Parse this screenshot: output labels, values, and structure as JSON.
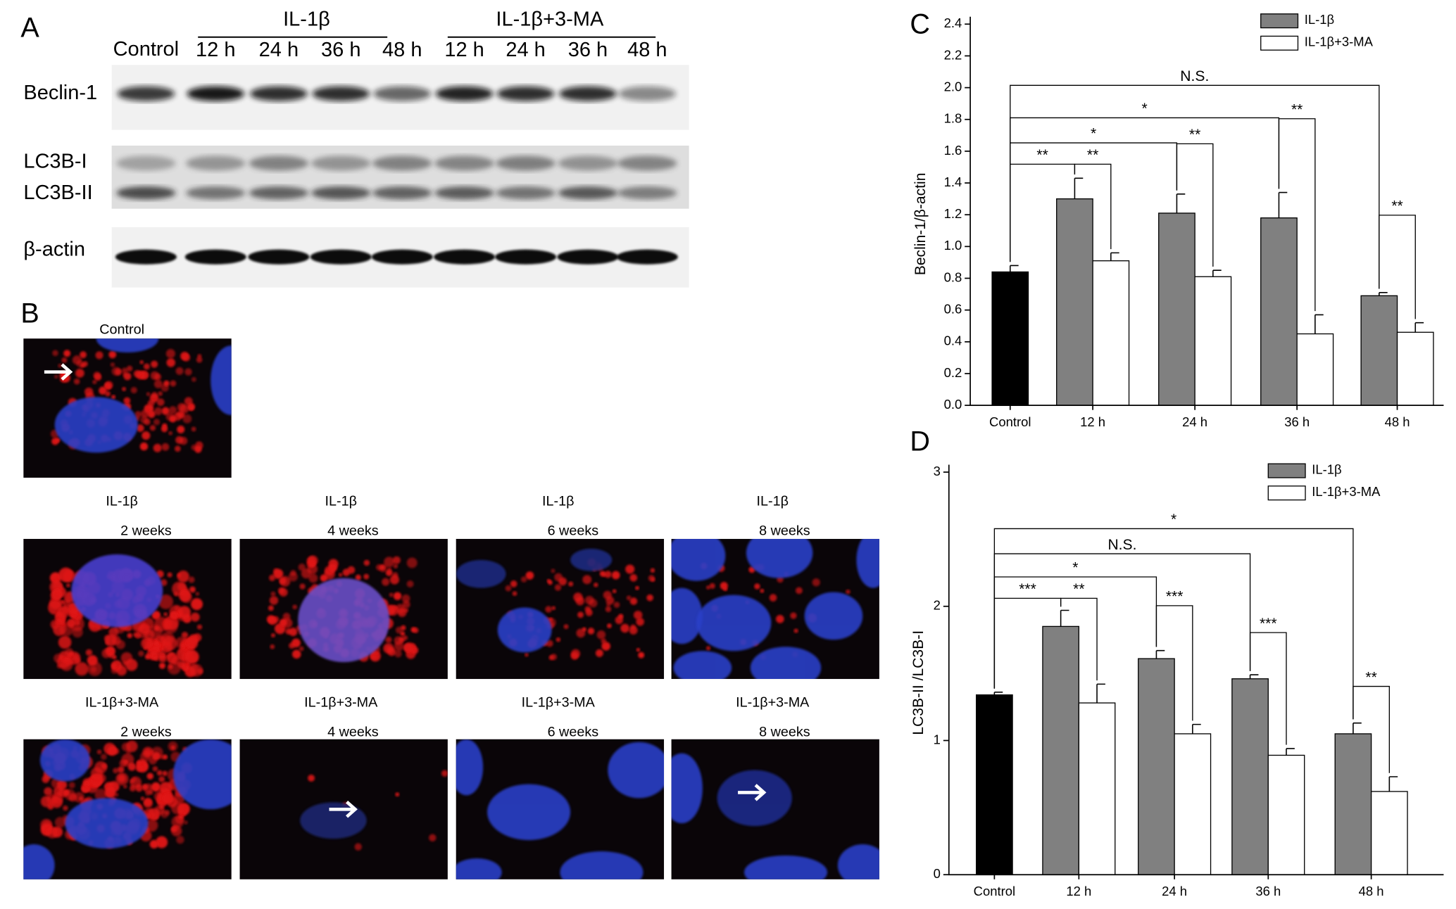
{
  "panel_a": {
    "label": "A",
    "control": "Control",
    "groups": [
      {
        "name": "IL-1β",
        "times": [
          "12 h",
          "24 h",
          "36 h",
          "48 h"
        ]
      },
      {
        "name": "IL-1β+3-MA",
        "times": [
          "12 h",
          "24 h",
          "36 h",
          "48 h"
        ]
      }
    ],
    "rows": [
      "Beclin-1",
      "LC3B-I",
      "LC3B-II",
      "β-actin"
    ]
  },
  "panel_b": {
    "label": "B",
    "control": "Control",
    "images": [
      {
        "title": "IL-1β",
        "subtitle": "2 weeks"
      },
      {
        "title": "IL-1β",
        "subtitle": "4 weeks"
      },
      {
        "title": "IL-1β",
        "subtitle": "6 weeks"
      },
      {
        "title": "IL-1β",
        "subtitle": "8 weeks"
      },
      {
        "title": "IL-1β+3-MA",
        "subtitle": "2 weeks"
      },
      {
        "title": "IL-1β+3-MA",
        "subtitle": "4 weeks"
      },
      {
        "title": "IL-1β+3-MA",
        "subtitle": "6 weeks"
      },
      {
        "title": "IL-1β+3-MA",
        "subtitle": "8 weeks"
      }
    ]
  },
  "chart_data": [
    {
      "type": "bar",
      "label": "C",
      "y_label": "Beclin-1/β-actin",
      "categories": [
        "Control",
        "12 h",
        "24 h",
        "36 h",
        "48 h"
      ],
      "control": {
        "value": 0.84,
        "error": 0.04,
        "color": "#000000"
      },
      "series": [
        {
          "name": "IL-1β",
          "color": "#808080",
          "values": [
            null,
            1.3,
            1.21,
            1.18,
            0.69
          ],
          "errors": [
            null,
            0.13,
            0.12,
            0.16,
            0.02
          ]
        },
        {
          "name": "IL-1β+3-MA",
          "color": "#ffffff",
          "values": [
            null,
            0.91,
            0.81,
            0.45,
            0.46
          ],
          "errors": [
            null,
            0.05,
            0.04,
            0.12,
            0.06
          ]
        }
      ],
      "ylim": [
        0,
        2.4
      ],
      "yticks": [
        {
          "value": 0,
          "label": "0.0"
        },
        0.2,
        0.4,
        0.6,
        0.8,
        {
          "value": 1,
          "label": "1.0"
        },
        1.2,
        1.4,
        1.6,
        1.8,
        {
          "value": 2,
          "label": "2.0"
        },
        2.2,
        2.4
      ],
      "annotations": [
        "N.S.",
        "*",
        "*",
        "**",
        "**",
        "**",
        "**",
        "**"
      ],
      "legend": "upper right"
    },
    {
      "type": "bar",
      "label": "D",
      "y_label": "LC3B-II /LC3B-I",
      "categories": [
        "Control",
        "12 h",
        "24 h",
        "36 h",
        "48 h"
      ],
      "control": {
        "value": 1.34,
        "error": 0.02,
        "color": "#000000"
      },
      "series": [
        {
          "name": "IL-1β",
          "color": "#808080",
          "values": [
            null,
            1.85,
            1.61,
            1.46,
            1.05
          ],
          "errors": [
            null,
            0.12,
            0.06,
            0.03,
            0.08
          ]
        },
        {
          "name": "IL-1β+3-MA",
          "color": "#ffffff",
          "values": [
            null,
            1.28,
            1.05,
            0.89,
            0.62
          ],
          "errors": [
            null,
            0.14,
            0.07,
            0.05,
            0.11
          ]
        }
      ],
      "ylim": [
        0,
        3
      ],
      "yticks": [
        0,
        1,
        2,
        3
      ],
      "annotations": [
        "*",
        "N.S.",
        "*",
        "***",
        "**",
        "***",
        "***",
        "**"
      ],
      "legend": "upper right"
    }
  ]
}
